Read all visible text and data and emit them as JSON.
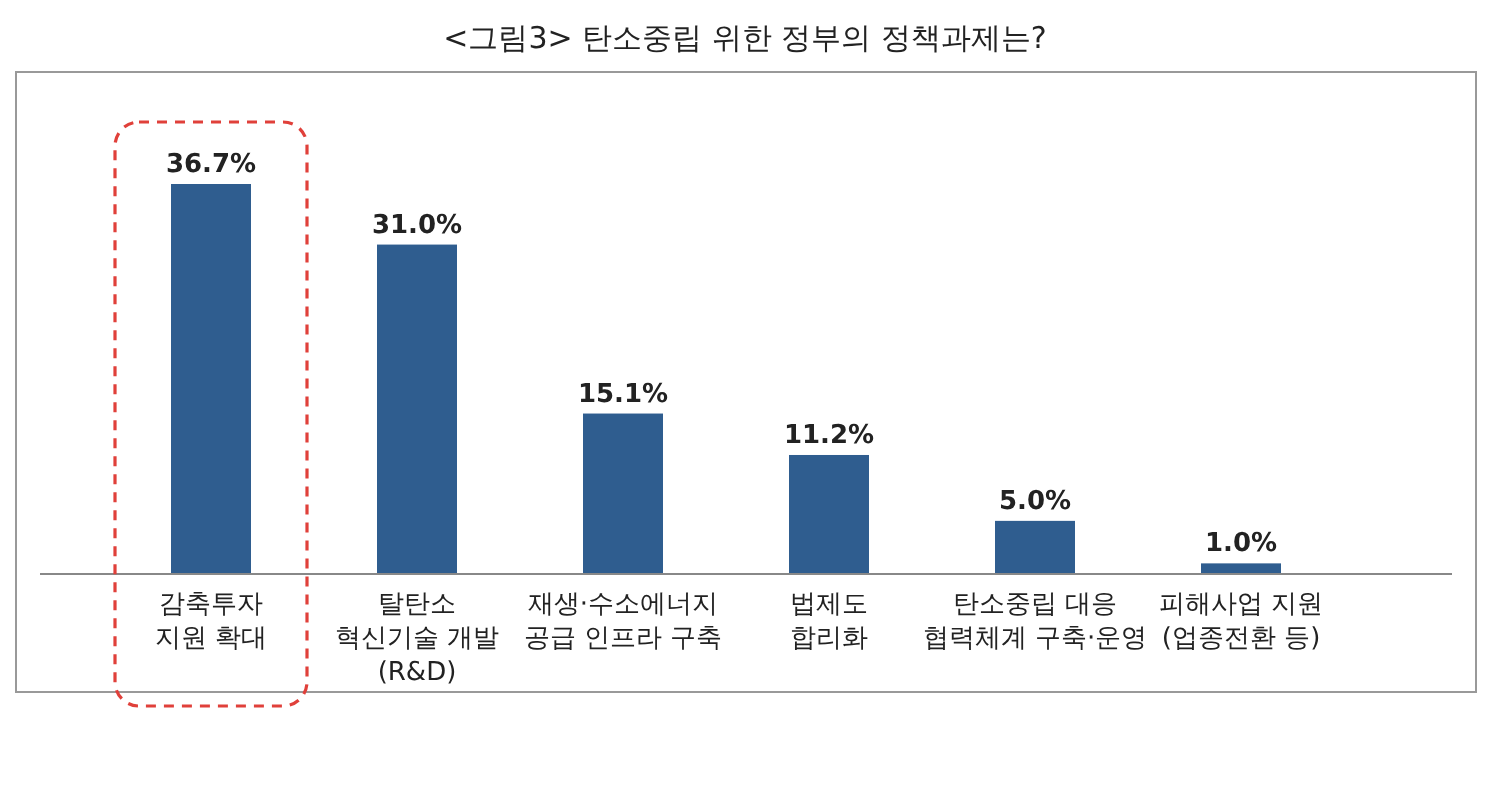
{
  "chart_data": {
    "type": "bar",
    "title": "<그림3> 탄소중립 위한 정부의 정책과제는?",
    "categories": [
      "감축투자\n지원 확대",
      "탈탄소\n혁신기술 개발\n(R&D)",
      "재생·수소에너지\n공급 인프라 구축",
      "법제도\n합리화",
      "탄소중립 대응\n협력체계 구축·운영",
      "피해사업 지원\n(업종전환 등)"
    ],
    "values": [
      36.7,
      31.0,
      15.1,
      11.2,
      5.0,
      1.0
    ],
    "value_labels": [
      "36.7%",
      "31.0%",
      "15.1%",
      "11.2%",
      "5.0%",
      "1.0%"
    ],
    "color": "#2f5d8f"
  }
}
